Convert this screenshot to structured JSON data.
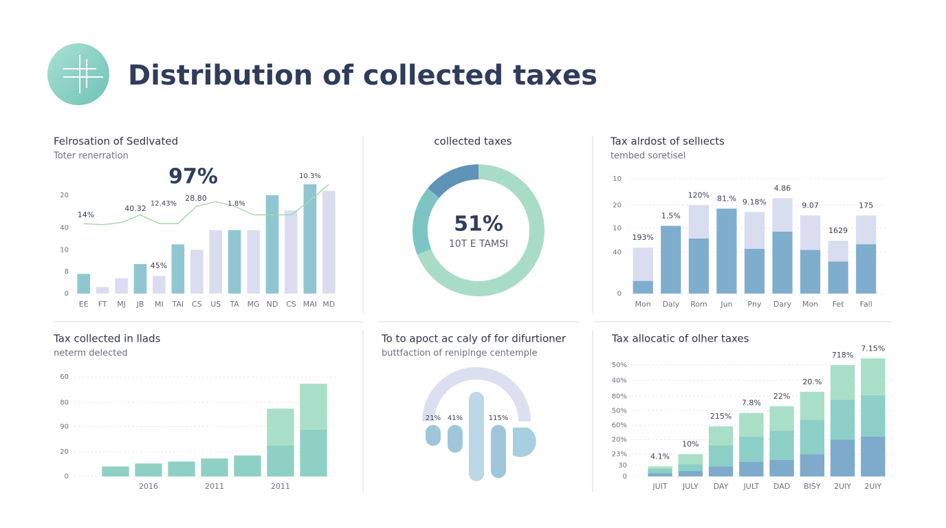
{
  "title": "Distribution of collected taxes",
  "chart_data": [
    {
      "type": "bar",
      "title": "Felrosation of Sedlvated",
      "subtitle": "Toter renerration",
      "categories": [
        "EE",
        "FT",
        "MJ",
        "JB",
        "MI",
        "TAI",
        "CS",
        "US",
        "TA",
        "MG",
        "ND",
        "CS",
        "MAI",
        "MD"
      ],
      "series": [
        {
          "color": "#8fc6d2",
          "values": [
            18,
            null,
            null,
            27,
            null,
            45,
            null,
            null,
            58,
            null,
            90,
            null,
            100,
            null
          ]
        },
        {
          "color": "#d9ddef",
          "values": [
            null,
            6,
            14,
            null,
            16,
            null,
            40,
            58,
            null,
            58,
            null,
            76,
            null,
            94
          ]
        },
        {
          "type": "line",
          "color": "#a3d9a9",
          "values": [
            64,
            63,
            65,
            72,
            64,
            64,
            80,
            84,
            80,
            72,
            72,
            72,
            85,
            100
          ]
        }
      ],
      "ylim": [
        0,
        100
      ],
      "yticks": [
        0,
        {
          "value": 20,
          "label": "8"
        },
        {
          "value": 40,
          "label": "10"
        },
        {
          "value": 60,
          "label": "40"
        },
        {
          "value": 90,
          "label": "20"
        }
      ],
      "annotations": [
        "97%",
        "14%",
        "40.32",
        "12.43%",
        "28.80",
        "1.8%",
        "10.3%",
        "45%"
      ]
    },
    {
      "type": "pie",
      "title": "collected taxes",
      "values": [
        69,
        17,
        14
      ],
      "colors": [
        "#a9dcc6",
        "#7cc5c3",
        "#5f93b8"
      ],
      "annotations": [
        "51%",
        "10T E TAMSI"
      ]
    },
    {
      "type": "bar",
      "title": "Tax alrdost of sellıects",
      "subtitle": "tembed soretisel",
      "categories": [
        "Mon",
        "Daly",
        "Rom",
        "Jun",
        "Pny",
        "Dary",
        "Mon",
        "Fet",
        "Fall"
      ],
      "series": [
        {
          "color": "#7fadcd",
          "values": [
            11,
            59,
            48,
            74,
            39,
            54,
            38,
            28,
            43
          ]
        },
        {
          "color": "#d8ddef",
          "values": [
            29,
            null,
            29,
            null,
            32,
            29,
            30,
            18,
            25
          ]
        }
      ],
      "ylim": [
        0,
        100
      ],
      "yticks": [
        0,
        {
          "value": 36,
          "label": "40"
        },
        {
          "value": 57,
          "label": "10"
        },
        {
          "value": 77,
          "label": "20"
        },
        {
          "value": 100,
          "label": "10"
        }
      ],
      "grid": true,
      "annotations": [
        "193%",
        "1.5%",
        "120%",
        "81.%",
        "9.18%",
        "4.86",
        "9.07",
        "1629",
        "175"
      ]
    },
    {
      "type": "bar",
      "title": "Tax collected in llads",
      "subtitle": "neterm delected",
      "categories": [
        null,
        "2016",
        null,
        "2011",
        null,
        "2011",
        null
      ],
      "series": [
        {
          "color": "#8fd0c5",
          "values": [
            10,
            13,
            15,
            18,
            21,
            31,
            47
          ]
        },
        {
          "color": "#a9dfc9",
          "values": [
            null,
            null,
            null,
            null,
            null,
            37,
            46
          ]
        }
      ],
      "ylim": [
        0,
        100
      ],
      "yticks": [
        0,
        {
          "value": 25,
          "label": "20"
        },
        {
          "value": 50,
          "label": "90"
        },
        {
          "value": 74,
          "label": "80"
        },
        {
          "value": 100,
          "label": "60"
        }
      ],
      "grid": true
    },
    {
      "type": "gauge",
      "title": "To to apoct ac caly of for difurtioner",
      "subtitle": "buttfaction of renipinge centemple",
      "values": [
        21,
        41,
        115
      ],
      "value_labels": [
        "21%",
        "41%",
        "115%"
      ],
      "color": "#9fc6da"
    },
    {
      "type": "bar",
      "title": "Tax allocatic of olher taxes",
      "categories": [
        "JUIT",
        "JULY",
        "DAY",
        "JULT",
        "DAD",
        "BISY",
        "2UIY",
        "2UIY"
      ],
      "series": [
        {
          "color": "#7eaacc",
          "values": [
            3,
            5,
            9,
            13,
            15,
            20,
            33,
            36
          ]
        },
        {
          "color": "#8ccfc7",
          "values": [
            4,
            6,
            19,
            23,
            26,
            31,
            36,
            37
          ]
        },
        {
          "color": "#a9dfc7",
          "values": [
            2,
            9,
            17,
            21,
            22,
            25,
            31,
            33
          ]
        }
      ],
      "ylim": [
        0,
        110
      ],
      "yticks": [
        0,
        {
          "value": 10,
          "label": "30"
        },
        {
          "value": 20,
          "label": "23%"
        },
        {
          "value": 33,
          "label": "20%"
        },
        {
          "value": 46,
          "label": "60%"
        },
        {
          "value": 59,
          "label": "50%"
        },
        {
          "value": 72,
          "label": "80%"
        },
        {
          "value": 86,
          "label": "40%"
        },
        {
          "value": 100,
          "label": "50%"
        }
      ],
      "grid": true,
      "annotations": [
        "4.1%",
        "10%",
        "215%",
        "7.8%",
        "22%",
        "20.%",
        "718%",
        "7.15%"
      ]
    }
  ]
}
